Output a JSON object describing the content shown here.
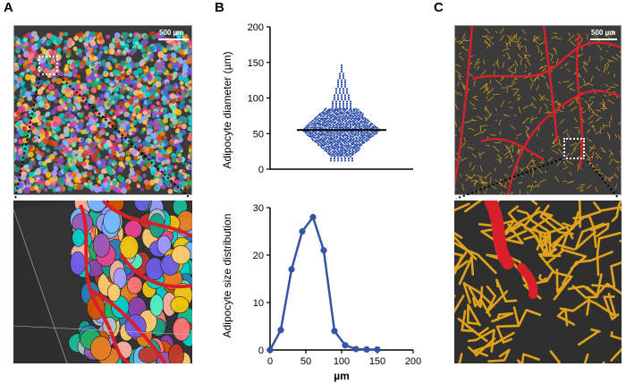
{
  "panels": {
    "a": {
      "letter": "A",
      "scale_label": "500 µm"
    },
    "b": {
      "letter": "B"
    },
    "c": {
      "letter": "C",
      "scale_label": "500 µm"
    }
  },
  "colors": {
    "scatter_dots": "#2f4fa8",
    "mean_line": "#000000",
    "distribution_line": "#3455a4",
    "vessel_red": "#d9202a",
    "capillary_yellow": "#e0a21a"
  },
  "chart_data": [
    {
      "type": "scatter",
      "title": "",
      "xlabel": "",
      "ylabel": "Adipocyte diameter (µm)",
      "ylim": [
        0,
        200
      ],
      "yticks": [
        0,
        50,
        100,
        150,
        200
      ],
      "mean": 55,
      "spread_range": [
        12,
        147
      ],
      "grid": false
    },
    {
      "type": "line",
      "title": "",
      "xlabel": "µm",
      "ylabel": "Adipocyte size distribution",
      "xlim": [
        0,
        200
      ],
      "ylim": [
        0,
        30
      ],
      "xticks": [
        0,
        50,
        100,
        150,
        200
      ],
      "yticks": [
        0,
        10,
        20,
        30
      ],
      "x": [
        0,
        15,
        30,
        45,
        60,
        75,
        90,
        105,
        120,
        135,
        150
      ],
      "y": [
        0,
        4.2,
        17,
        25,
        28,
        21,
        4,
        1,
        0.2,
        0.1,
        0.1
      ],
      "grid": false
    }
  ]
}
